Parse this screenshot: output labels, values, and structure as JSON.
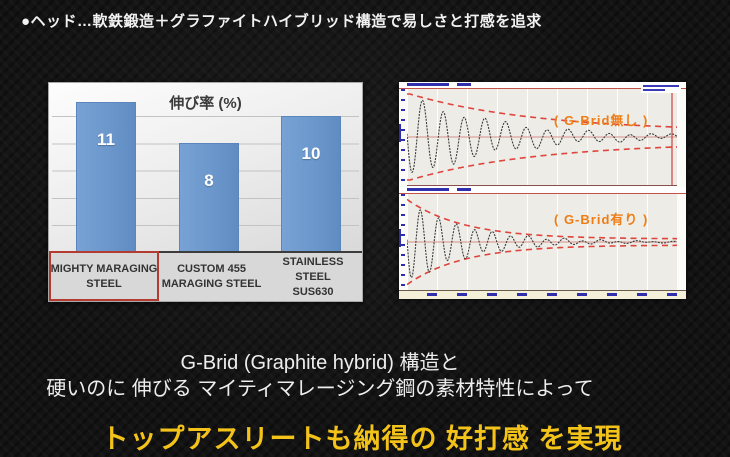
{
  "header": {
    "text": "●ヘッド…軟鉄鍛造＋グラファイトハイブリッド構造で易しさと打感を追求"
  },
  "bar_chart": {
    "title": "伸び率 (%)",
    "bars": [
      {
        "value": "11",
        "label1": "MIGHTY MARAGING",
        "label2": "STEEL",
        "highlighted": true
      },
      {
        "value": "8",
        "label1": "CUSTOM 455",
        "label2": "MARAGING STEEL",
        "highlighted": false
      },
      {
        "value": "10",
        "label1": "STAINLESS STEEL",
        "label2": "SUS630",
        "highlighted": false
      }
    ],
    "colors": {
      "bar": "#6b97cc",
      "highlight_box": "#b23b32"
    }
  },
  "vibration_panel": {
    "charts": [
      {
        "label": "( G-Brid無し )",
        "wave": {
          "a1": 0.95,
          "d1": 3.0,
          "f1": 13,
          "a2": 0.08,
          "d2": 1.2,
          "f2": 3.2
        },
        "envelope": {
          "e0": 0.9,
          "ed": 2.1,
          "ef": 0.12
        },
        "vline": true
      },
      {
        "label": "( G-Brid有り )",
        "wave": {
          "a1": 0.95,
          "d1": 4.6,
          "f1": 15,
          "a2": 0.06,
          "d2": 1.6,
          "f2": 7.0
        },
        "envelope": {
          "e0": 0.92,
          "ed": 4.8,
          "ef": 0.07
        },
        "vline": false
      }
    ],
    "colors": {
      "envelope": "#df453d",
      "waveform": "#3a3a3a",
      "label": "#ee7d15"
    }
  },
  "caption": {
    "line1": "G-Brid (Graphite hybrid) 構造と",
    "line2": "硬いのに 伸びる マイティマレージング鋼の素材特性によって",
    "highlight": "トップアスリートも納得の 好打感 を実現",
    "highlight_color": "#f3c319"
  },
  "chart_data": [
    {
      "type": "bar",
      "title": "伸び率 (%)",
      "categories": [
        "MIGHTY MARAGING STEEL",
        "CUSTOM 455 MARAGING STEEL",
        "STAINLESS STEEL SUS630"
      ],
      "values": [
        11,
        8,
        10
      ],
      "ylim": [
        0,
        12
      ],
      "grid": true,
      "data_labels": true,
      "legend": "none",
      "highlighted_category": "MIGHTY MARAGING STEEL"
    },
    {
      "type": "line",
      "title": "( G-Brid無し )",
      "description": "Impact vibration waveform without G-Brid: damped oscillation whose red dashed decay envelope converges slowly (vibration persists across the full time window)",
      "envelope_decay": "slow",
      "envelope_end_amplitude_ratio": 0.22,
      "series": [
        {
          "name": "vibration amplitude",
          "style": "dotted black trace with symmetric red dashed envelope"
        }
      ]
    },
    {
      "type": "line",
      "title": "( G-Brid有り )",
      "description": "Impact vibration waveform with G-Brid: damped oscillation whose red dashed decay envelope converges quickly (vibration settles by mid-window)",
      "envelope_decay": "fast",
      "envelope_end_amplitude_ratio": 0.08,
      "series": [
        {
          "name": "vibration amplitude",
          "style": "dotted black trace with symmetric red dashed envelope"
        }
      ]
    }
  ]
}
